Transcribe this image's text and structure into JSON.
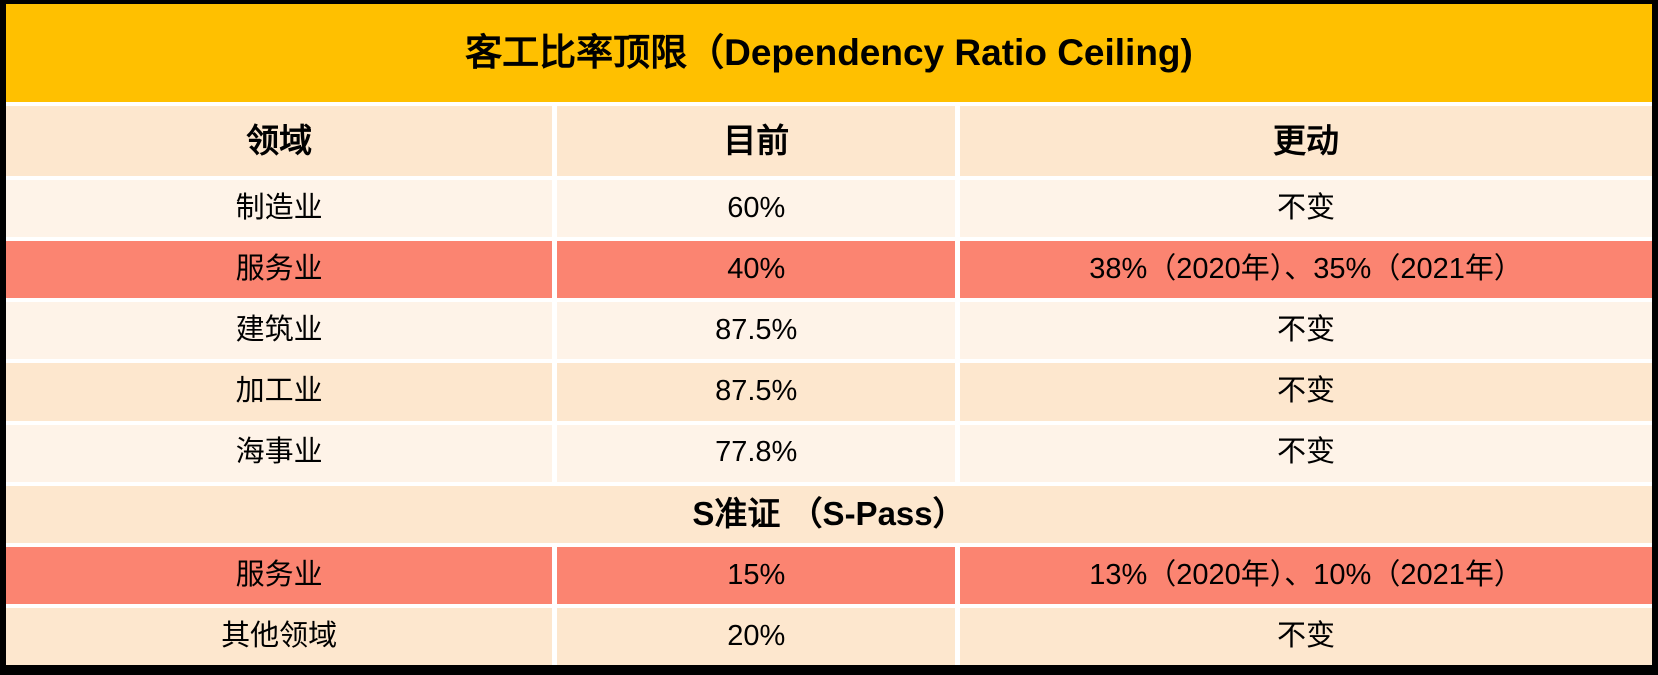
{
  "title": "客工比率顶限（Dependency Ratio Ceiling)",
  "colors": {
    "title_band": "#FFC000",
    "header_row": "#FDE7CE",
    "row_cream": "#FEF3E8",
    "row_peach": "#FDE7CE",
    "row_highlight": "#FB8471",
    "gap_lines": "#FFFFFF",
    "outer_frame": "#000000",
    "text": "#000000"
  },
  "table": {
    "columns": {
      "sector": "领域",
      "current": "目前",
      "change": "更动"
    },
    "rows": [
      {
        "sector": "制造业",
        "current": "60%",
        "change": "不变"
      },
      {
        "sector": "服务业",
        "current": "40%",
        "change": "38%（2020年）、35%（2021年）"
      },
      {
        "sector": "建筑业",
        "current": "87.5%",
        "change": "不变"
      },
      {
        "sector": "加工业",
        "current": "87.5%",
        "change": "不变"
      },
      {
        "sector": "海事业",
        "current": "77.8%",
        "change": "不变"
      }
    ],
    "section_header": "S准证 （S-Pass）",
    "spass_rows": [
      {
        "sector": "服务业",
        "current": "15%",
        "change": "13%（2020年）、10%（2021年）"
      },
      {
        "sector": "其他领域",
        "current": "20%",
        "change": "不变"
      }
    ]
  }
}
